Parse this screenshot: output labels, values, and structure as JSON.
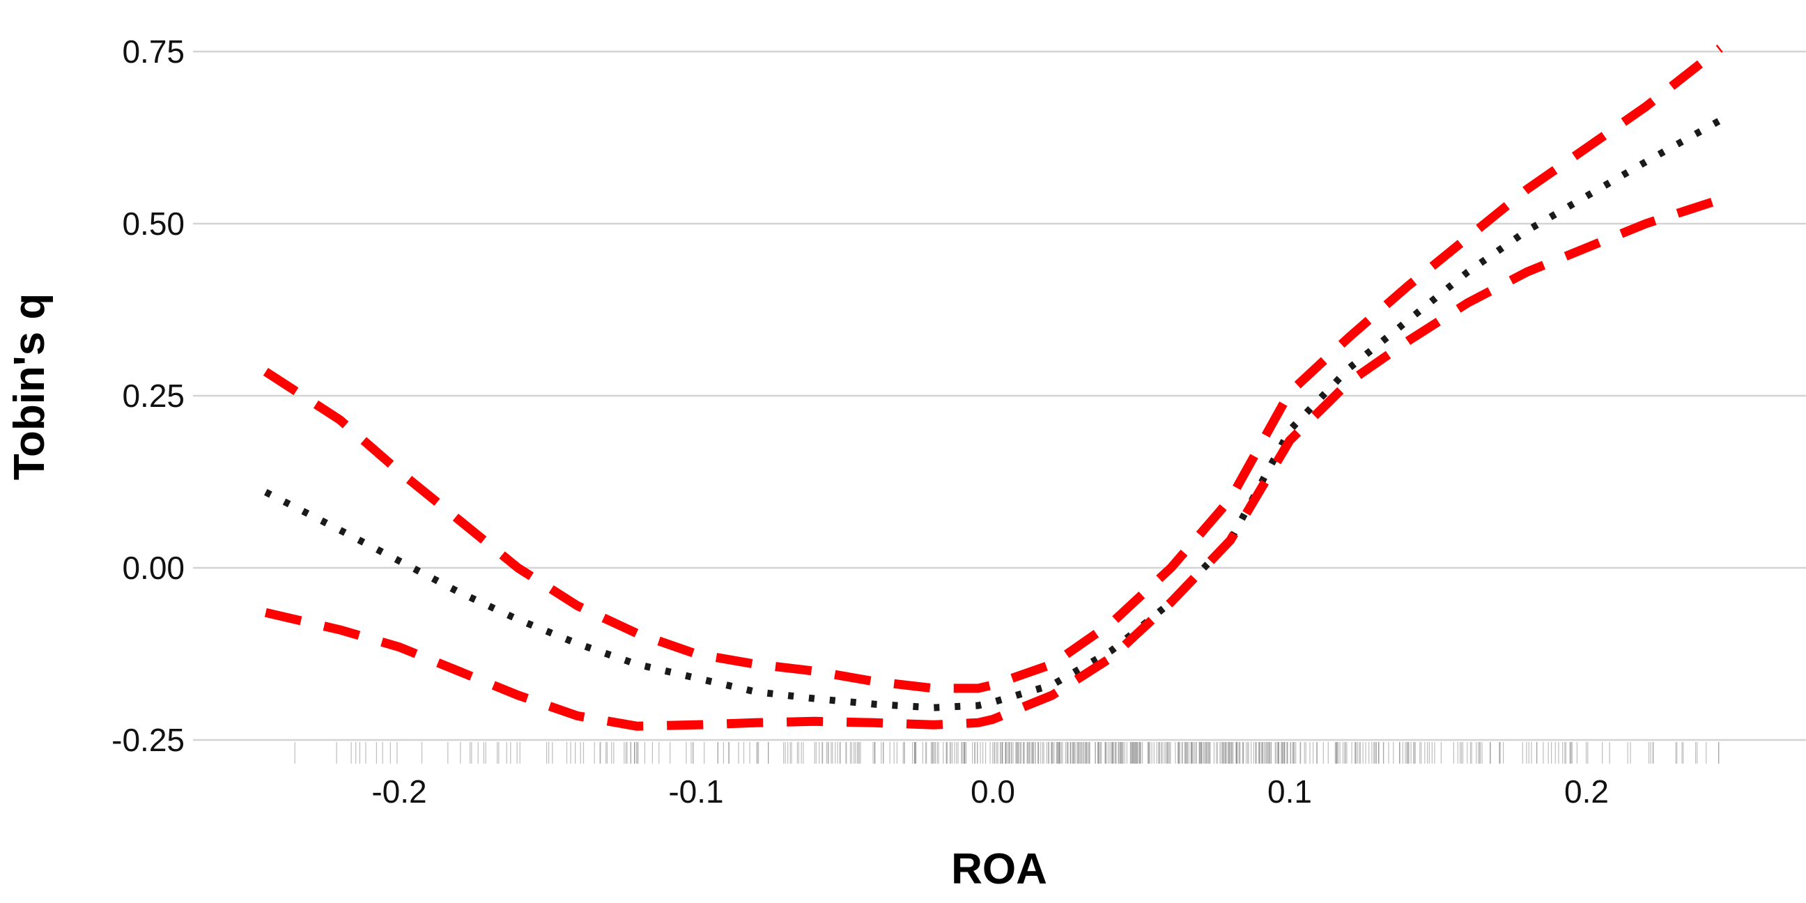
{
  "chart_data": {
    "type": "line",
    "title": "",
    "xlabel": "ROA",
    "ylabel": "Tobin's q",
    "xlim": [
      -0.25,
      0.25
    ],
    "ylim": [
      -0.25,
      0.75
    ],
    "x_ticks": [
      -0.2,
      -0.1,
      0.0,
      0.1,
      0.2
    ],
    "x_tick_labels": [
      "-0.2",
      "-0.1",
      "0.0",
      "0.1",
      "0.2"
    ],
    "y_ticks": [
      -0.25,
      0.0,
      0.25,
      0.5,
      0.75
    ],
    "y_tick_labels": [
      "-0.25",
      "0.00",
      "0.25",
      "0.50",
      "0.75"
    ],
    "grid": "horizontal",
    "legend": "none",
    "series": [
      {
        "style": "dotted",
        "color": "#1a1a1a",
        "points": [
          [
            -0.245,
            0.11
          ],
          [
            -0.22,
            0.055
          ],
          [
            -0.2,
            0.01
          ],
          [
            -0.18,
            -0.035
          ],
          [
            -0.16,
            -0.075
          ],
          [
            -0.14,
            -0.11
          ],
          [
            -0.12,
            -0.14
          ],
          [
            -0.1,
            -0.16
          ],
          [
            -0.08,
            -0.18
          ],
          [
            -0.06,
            -0.19
          ],
          [
            -0.04,
            -0.198
          ],
          [
            -0.02,
            -0.203
          ],
          [
            -0.005,
            -0.2
          ],
          [
            0.0,
            -0.195
          ],
          [
            0.02,
            -0.17
          ],
          [
            0.04,
            -0.12
          ],
          [
            0.06,
            -0.05
          ],
          [
            0.08,
            0.04
          ],
          [
            0.1,
            0.2
          ],
          [
            0.12,
            0.29
          ],
          [
            0.14,
            0.36
          ],
          [
            0.16,
            0.43
          ],
          [
            0.18,
            0.49
          ],
          [
            0.2,
            0.54
          ],
          [
            0.22,
            0.59
          ],
          [
            0.245,
            0.65
          ]
        ]
      },
      {
        "style": "dashed",
        "color": "#ff0000",
        "points": [
          [
            -0.245,
            0.285
          ],
          [
            -0.22,
            0.215
          ],
          [
            -0.2,
            0.14
          ],
          [
            -0.18,
            0.07
          ],
          [
            -0.16,
            0.0
          ],
          [
            -0.14,
            -0.055
          ],
          [
            -0.12,
            -0.095
          ],
          [
            -0.1,
            -0.125
          ],
          [
            -0.08,
            -0.14
          ],
          [
            -0.06,
            -0.15
          ],
          [
            -0.04,
            -0.165
          ],
          [
            -0.02,
            -0.175
          ],
          [
            -0.005,
            -0.175
          ],
          [
            0.0,
            -0.17
          ],
          [
            0.02,
            -0.14
          ],
          [
            0.04,
            -0.08
          ],
          [
            0.06,
            0.0
          ],
          [
            0.08,
            0.1
          ],
          [
            0.1,
            0.255
          ],
          [
            0.12,
            0.335
          ],
          [
            0.14,
            0.41
          ],
          [
            0.16,
            0.48
          ],
          [
            0.18,
            0.55
          ],
          [
            0.2,
            0.61
          ],
          [
            0.22,
            0.67
          ],
          [
            0.245,
            0.755
          ]
        ]
      },
      {
        "style": "dashed",
        "color": "#ff0000",
        "points": [
          [
            -0.245,
            -0.065
          ],
          [
            -0.22,
            -0.09
          ],
          [
            -0.2,
            -0.115
          ],
          [
            -0.18,
            -0.15
          ],
          [
            -0.16,
            -0.185
          ],
          [
            -0.14,
            -0.215
          ],
          [
            -0.12,
            -0.23
          ],
          [
            -0.1,
            -0.228
          ],
          [
            -0.08,
            -0.225
          ],
          [
            -0.06,
            -0.223
          ],
          [
            -0.04,
            -0.225
          ],
          [
            -0.02,
            -0.228
          ],
          [
            -0.005,
            -0.225
          ],
          [
            0.0,
            -0.22
          ],
          [
            0.02,
            -0.185
          ],
          [
            0.04,
            -0.13
          ],
          [
            0.06,
            -0.05
          ],
          [
            0.08,
            0.04
          ],
          [
            0.1,
            0.185
          ],
          [
            0.12,
            0.27
          ],
          [
            0.14,
            0.33
          ],
          [
            0.16,
            0.385
          ],
          [
            0.18,
            0.43
          ],
          [
            0.2,
            0.465
          ],
          [
            0.22,
            0.5
          ],
          [
            0.245,
            0.535
          ]
        ]
      }
    ],
    "rug": {
      "color": "#888888",
      "segments": [
        {
          "from": -0.245,
          "to": -0.23,
          "density": 1
        },
        {
          "from": -0.23,
          "to": -0.15,
          "density": 3
        },
        {
          "from": -0.15,
          "to": -0.08,
          "density": 6
        },
        {
          "from": -0.08,
          "to": -0.03,
          "density": 10
        },
        {
          "from": -0.03,
          "to": 0.0,
          "density": 16
        },
        {
          "from": 0.0,
          "to": 0.1,
          "density": 30
        },
        {
          "from": 0.1,
          "to": 0.15,
          "density": 14
        },
        {
          "from": 0.15,
          "to": 0.2,
          "density": 8
        },
        {
          "from": 0.2,
          "to": 0.245,
          "density": 4
        }
      ]
    }
  }
}
